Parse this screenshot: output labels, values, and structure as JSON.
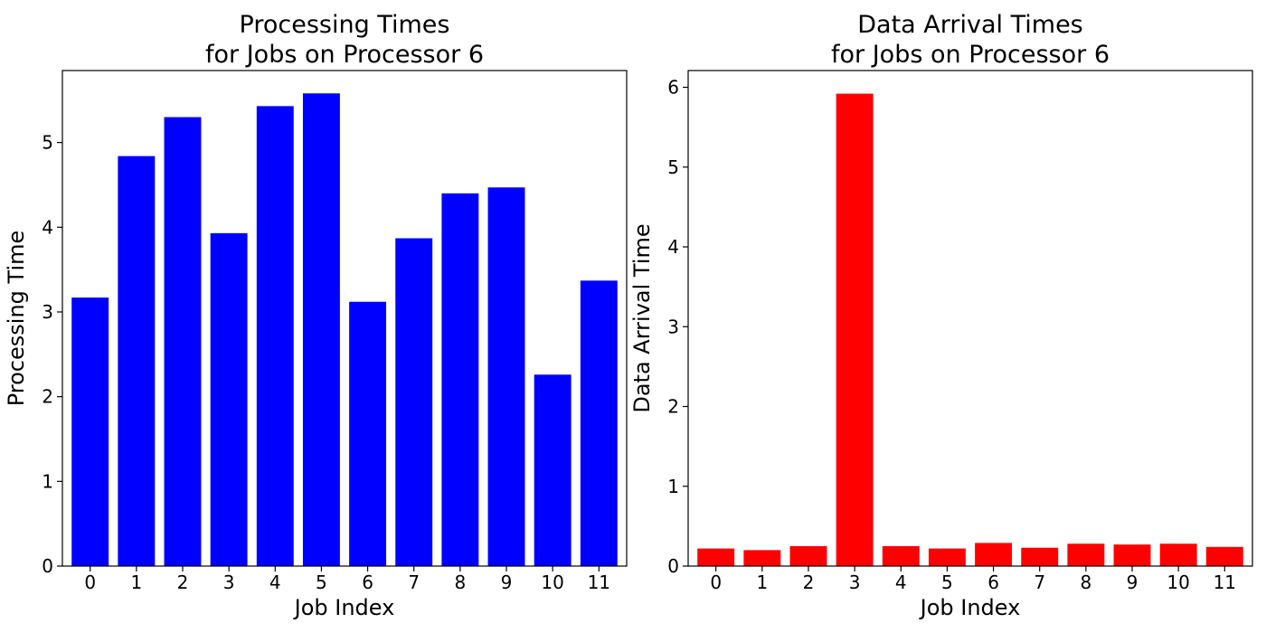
{
  "chart_data": [
    {
      "type": "bar",
      "title": [
        "Processing Times",
        "for Jobs on Processor 6"
      ],
      "xlabel": "Job Index",
      "ylabel": "Processing Time",
      "categories": [
        "0",
        "1",
        "2",
        "3",
        "4",
        "5",
        "6",
        "7",
        "8",
        "9",
        "10",
        "11"
      ],
      "values": [
        3.17,
        4.84,
        5.3,
        3.93,
        5.43,
        5.58,
        3.12,
        3.87,
        4.4,
        4.47,
        2.26,
        3.37
      ],
      "ylim": [
        0,
        5.85
      ],
      "yticks": [
        0,
        1,
        2,
        3,
        4,
        5
      ],
      "color": "#0000ff",
      "grid": false
    },
    {
      "type": "bar",
      "title": [
        "Data Arrival Times",
        "for Jobs on Processor 6"
      ],
      "xlabel": "Job Index",
      "ylabel": "Data Arrival Time",
      "categories": [
        "0",
        "1",
        "2",
        "3",
        "4",
        "5",
        "6",
        "7",
        "8",
        "9",
        "10",
        "11"
      ],
      "values": [
        0.22,
        0.2,
        0.25,
        5.92,
        0.25,
        0.22,
        0.29,
        0.23,
        0.28,
        0.27,
        0.28,
        0.24
      ],
      "ylim": [
        0,
        6.21
      ],
      "yticks": [
        0,
        1,
        2,
        3,
        4,
        5,
        6
      ],
      "color": "#ff0000",
      "grid": false
    }
  ]
}
